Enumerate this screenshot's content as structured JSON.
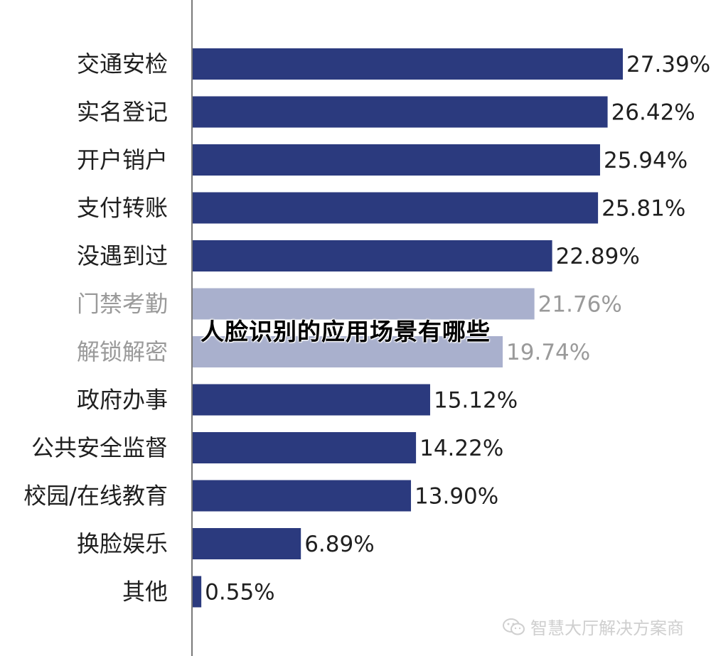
{
  "overlay_title": "人脸识别的应用场景有哪些",
  "watermark": "智慧大厅解决方案商",
  "colors": {
    "primary_bar": "#2b3a7e",
    "highlight_bar": "#a9b0cd",
    "primary_text": "#1f1f1f",
    "highlight_text": "#9a9a9a",
    "axis": "#7a7a7a"
  },
  "chart_data": {
    "type": "bar",
    "orientation": "horizontal",
    "categories": [
      "交通安检",
      "实名登记",
      "开户销户",
      "支付转账",
      "没遇到过",
      "门禁考勤",
      "解锁解密",
      "政府办事",
      "公共安全监督",
      "校园/在线教育",
      "换脸娱乐",
      "其他"
    ],
    "values": [
      27.39,
      26.42,
      25.94,
      25.81,
      22.89,
      21.76,
      19.74,
      15.12,
      14.22,
      13.9,
      6.89,
      0.55
    ],
    "value_labels": [
      "27.39%",
      "26.42%",
      "25.94%",
      "25.81%",
      "22.89%",
      "21.76%",
      "19.74%",
      "15.12%",
      "14.22%",
      "13.90%",
      "6.89%",
      "0.55%"
    ],
    "highlighted": [
      false,
      false,
      false,
      false,
      false,
      true,
      true,
      false,
      false,
      false,
      false,
      false
    ],
    "xlim": [
      0,
      27.39
    ],
    "grid": false,
    "legend": "none"
  }
}
